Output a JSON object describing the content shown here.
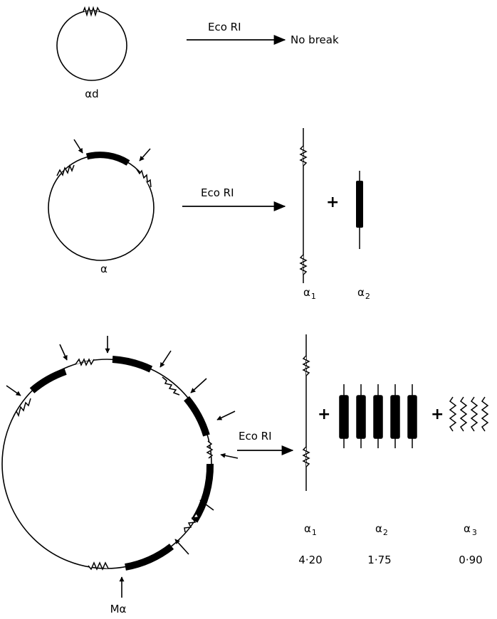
{
  "panel1": {
    "plasmid_label": "αd",
    "enzyme_label": "Eco RI",
    "result_label": "No break"
  },
  "panel2": {
    "plasmid_label": "α",
    "enzyme_label": "Eco RI",
    "plus": "+",
    "fragment1_label": "α",
    "fragment1_sub": "1",
    "fragment2_label": "α",
    "fragment2_sub": "2"
  },
  "panel3": {
    "plasmid_label": "Mα",
    "enzyme_label": "Eco RI",
    "plus1": "+",
    "plus2": "+",
    "fragment1_label": "α",
    "fragment1_sub": "1",
    "fragment2_label": "α",
    "fragment2_sub": "2",
    "fragment3_label": "α",
    "fragment3_sub": "3",
    "fragment1_size": "4·20",
    "fragment2_size": "1·75",
    "fragment3_size": "0·90"
  }
}
